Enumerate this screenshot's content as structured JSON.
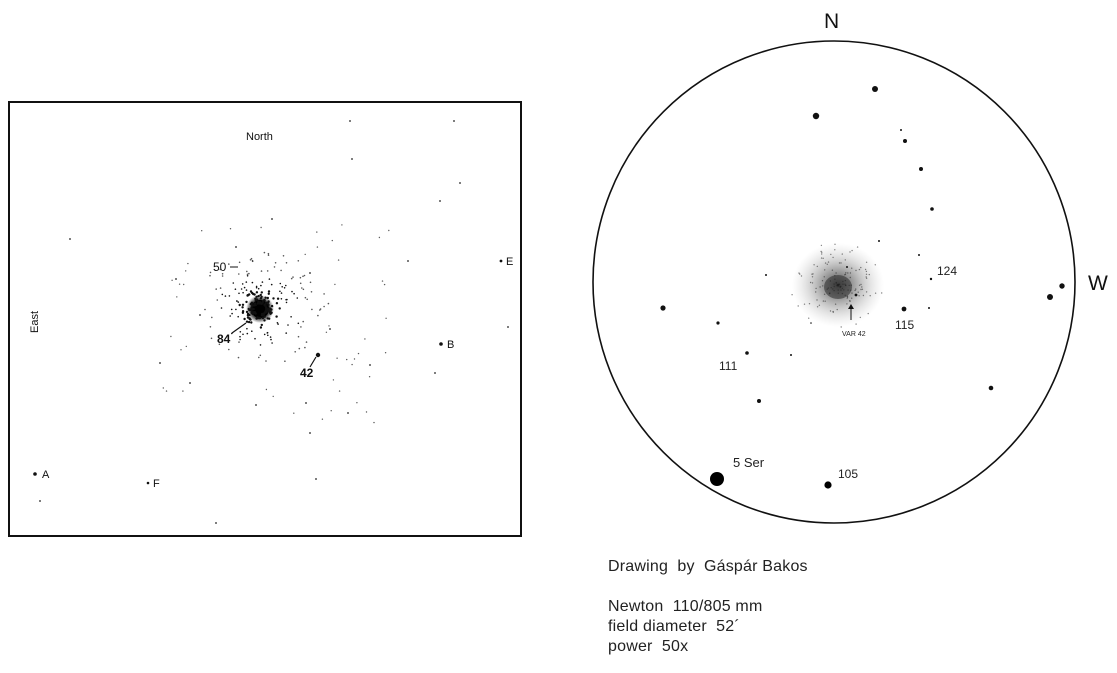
{
  "finder_chart": {
    "north_label": "North",
    "east_label": "East",
    "star_labels": {
      "s50": "50",
      "s84": "84",
      "s42": "42",
      "A": "A",
      "B": "B",
      "E": "E",
      "F": "F"
    }
  },
  "eyepiece_drawing": {
    "compass": {
      "north": "N",
      "west": "W"
    },
    "star_labels": {
      "s124": "124",
      "s115": "115",
      "s111": "111",
      "s105": "105",
      "s5ser": "5 Ser",
      "var42": "VAR 42"
    }
  },
  "caption": {
    "credit": "Drawing  by  Gáspár Bakos",
    "telescope": "Newton  110/805 mm",
    "field": "field diameter  52´",
    "power": "power  50x"
  },
  "colors": {
    "ink": "#111111",
    "paper": "#ffffff"
  }
}
